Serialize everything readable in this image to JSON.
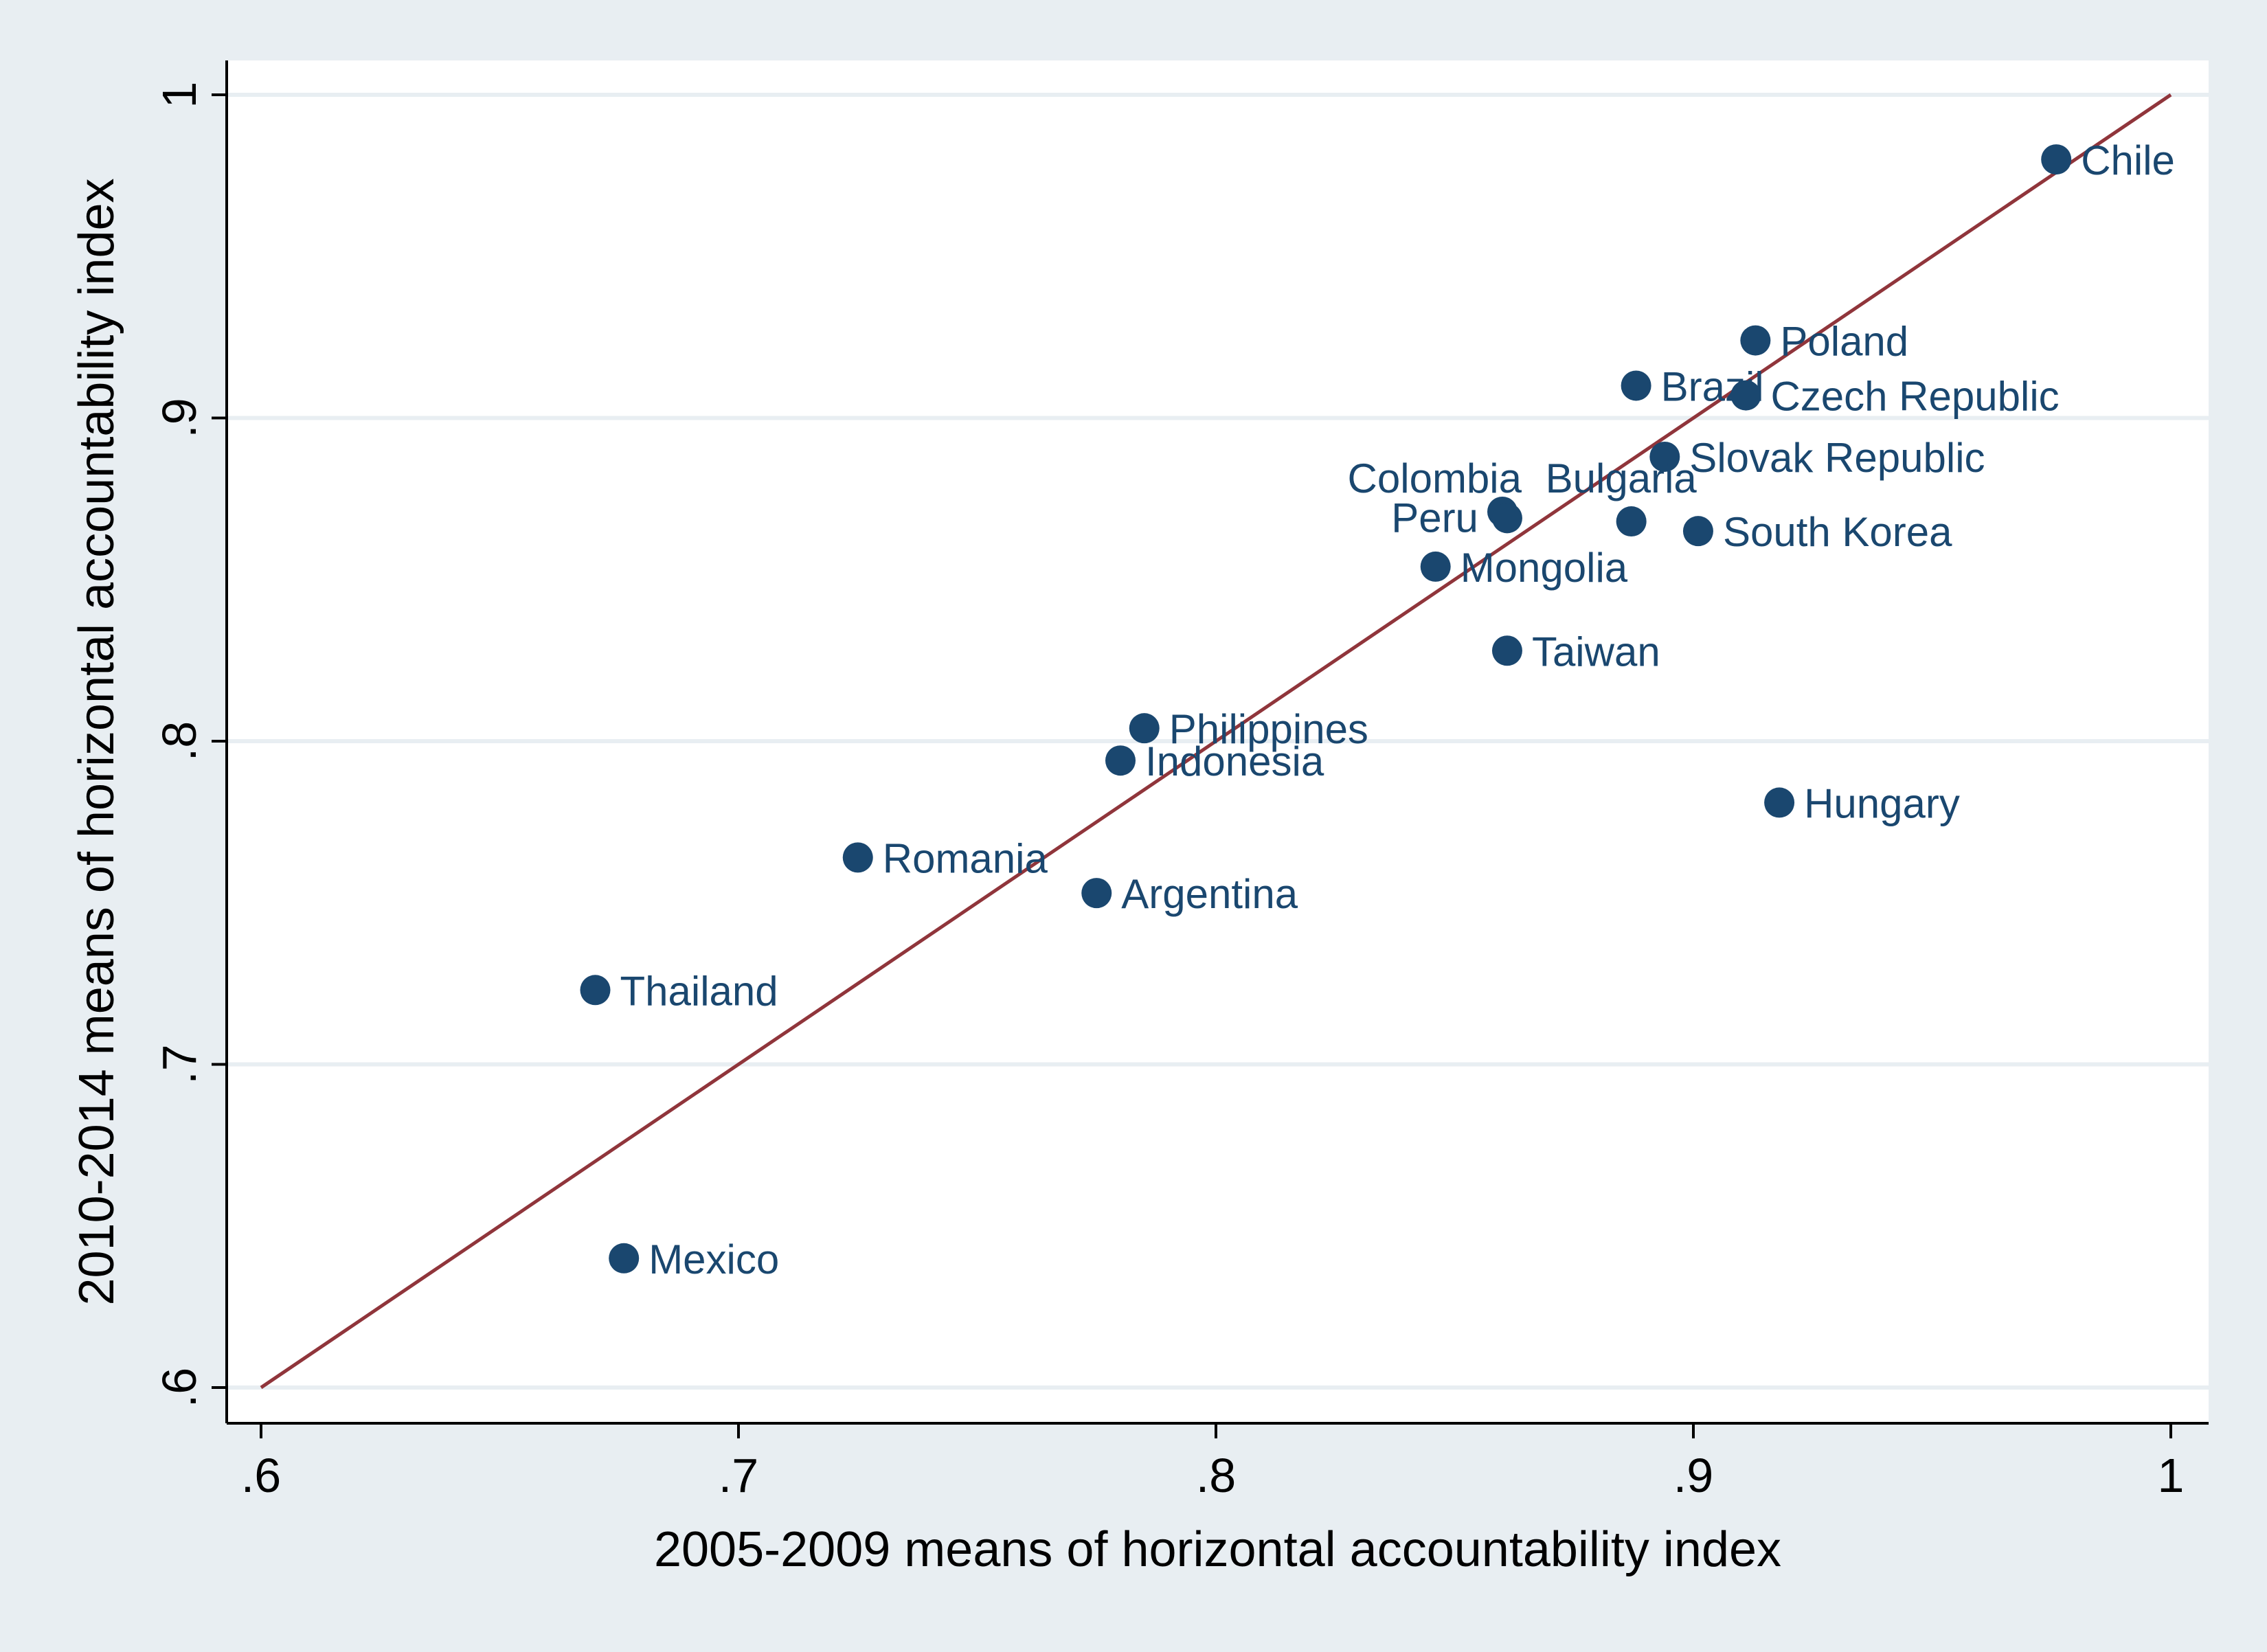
{
  "chart_data": {
    "type": "scatter",
    "title": "",
    "xlabel": "2005-2009 means of horizontal accountability index",
    "ylabel": "2010-2014 means of horizontal accountability index",
    "xlim": [
      0.6,
      1.0
    ],
    "ylim": [
      0.6,
      1.0
    ],
    "x_ticks": [
      ".6",
      ".7",
      ".8",
      ".9",
      "1"
    ],
    "y_ticks": [
      ".6",
      ".7",
      ".8",
      ".9",
      "1"
    ],
    "grid": "horizontal",
    "reference_line": {
      "type": "45-degree",
      "from": [
        0.6,
        0.6
      ],
      "to": [
        1.0,
        1.0
      ]
    },
    "points": [
      {
        "label": "Chile",
        "x": 0.976,
        "y": 0.98
      },
      {
        "label": "Poland",
        "x": 0.913,
        "y": 0.924
      },
      {
        "label": "Brazil",
        "x": 0.888,
        "y": 0.91
      },
      {
        "label": "Czech Republic",
        "x": 0.911,
        "y": 0.907
      },
      {
        "label": "Slovak Republic",
        "x": 0.894,
        "y": 0.888
      },
      {
        "label": "Colombia",
        "x": 0.86,
        "y": 0.871
      },
      {
        "label": "Peru",
        "x": 0.861,
        "y": 0.869
      },
      {
        "label": "Bulgaria",
        "x": 0.887,
        "y": 0.868
      },
      {
        "label": "South Korea",
        "x": 0.901,
        "y": 0.865
      },
      {
        "label": "Mongolia",
        "x": 0.846,
        "y": 0.854
      },
      {
        "label": "Taiwan",
        "x": 0.861,
        "y": 0.828
      },
      {
        "label": "Philippines",
        "x": 0.785,
        "y": 0.804
      },
      {
        "label": "Indonesia",
        "x": 0.78,
        "y": 0.794
      },
      {
        "label": "Hungary",
        "x": 0.918,
        "y": 0.781
      },
      {
        "label": "Romania",
        "x": 0.725,
        "y": 0.764
      },
      {
        "label": "Argentina",
        "x": 0.775,
        "y": 0.753
      },
      {
        "label": "Thailand",
        "x": 0.67,
        "y": 0.723
      },
      {
        "label": "Mexico",
        "x": 0.676,
        "y": 0.64
      }
    ],
    "colors": {
      "background": "#e8eef2",
      "plot_background": "#ffffff",
      "points": "#1a476f",
      "line": "#90353b",
      "grid": "#e8eef2",
      "axis": "#000000"
    }
  }
}
